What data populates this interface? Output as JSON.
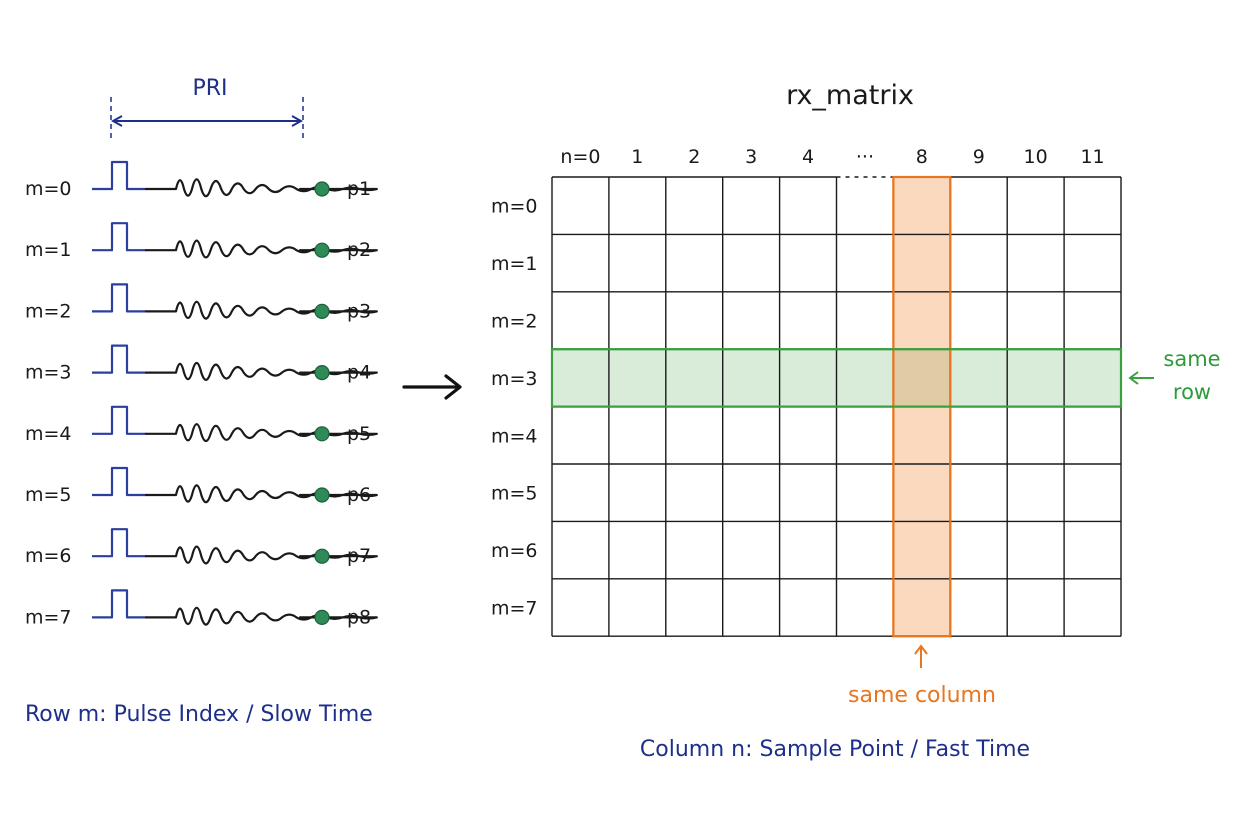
{
  "pri_label": "PRI",
  "pulses": [
    {
      "row": "m=0",
      "point": "p1"
    },
    {
      "row": "m=1",
      "point": "p2"
    },
    {
      "row": "m=2",
      "point": "p3"
    },
    {
      "row": "m=3",
      "point": "p4"
    },
    {
      "row": "m=4",
      "point": "p5"
    },
    {
      "row": "m=5",
      "point": "p6"
    },
    {
      "row": "m=6",
      "point": "p7"
    },
    {
      "row": "m=7",
      "point": "p8"
    }
  ],
  "point_color": "#2e8b57",
  "pulse_color": "#2b3f9e",
  "left_caption": "Row m:  Pulse Index / Slow Time",
  "matrix": {
    "title": "rx_matrix",
    "columns": [
      "n=0",
      "1",
      "2",
      "3",
      "4",
      "···",
      "8",
      "9",
      "10",
      "11"
    ],
    "rows": [
      "m=0",
      "m=1",
      "m=2",
      "m=3",
      "m=4",
      "m=5",
      "m=6",
      "m=7"
    ],
    "highlight_row_index": 3,
    "highlight_column_index": 6,
    "row_highlight_color": "#3aa040",
    "column_highlight_color": "#e8761e",
    "same_row_label_line1": "same",
    "same_row_label_line2": "row",
    "same_column_label": "same column",
    "bottom_caption": "Column n:  Sample Point / Fast Time"
  }
}
